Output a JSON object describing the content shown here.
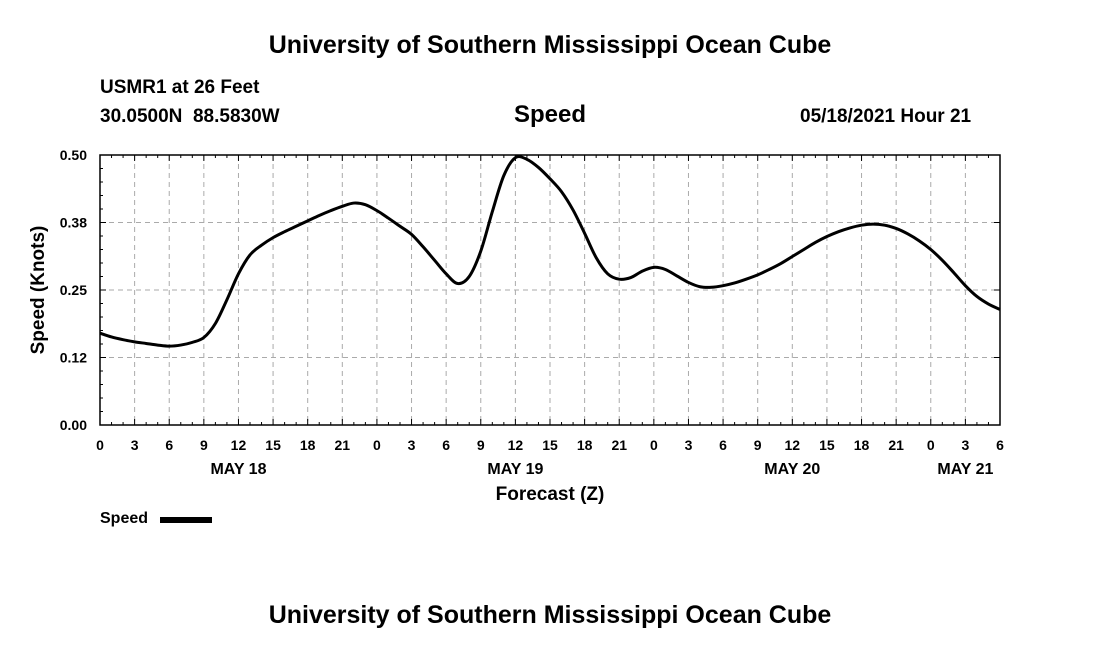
{
  "header": {
    "title_top": "University of Southern Mississippi Ocean Cube",
    "station": "USMR1 at 26 Feet",
    "coords": "30.0500N  88.5830W",
    "chart_name": "Speed",
    "datetime": "05/18/2021 Hour 21",
    "title_bottom": "University of Southern Mississippi Ocean Cube"
  },
  "legend": {
    "label": "Speed"
  },
  "colors": {
    "line": "#000000",
    "grid": "#aaaaaa"
  },
  "chart_data": {
    "type": "line",
    "title": "Speed",
    "xlabel": "Forecast (Z)",
    "ylabel": "Speed (Knots)",
    "xlim": [
      0,
      78
    ],
    "ylim": [
      0,
      0.5
    ],
    "y_ticks": [
      0.0,
      0.125,
      0.25,
      0.375,
      0.5
    ],
    "y_tick_labels": [
      "0.00",
      "0.12",
      "0.25",
      "0.38",
      "0.50"
    ],
    "x_ticks": [
      0,
      3,
      6,
      9,
      12,
      15,
      18,
      21,
      24,
      27,
      30,
      33,
      36,
      39,
      42,
      45,
      48,
      51,
      54,
      57,
      60,
      63,
      66,
      69,
      72,
      75,
      78
    ],
    "x_tick_labels": [
      "0",
      "3",
      "6",
      "9",
      "12",
      "15",
      "18",
      "21",
      "0",
      "3",
      "6",
      "9",
      "12",
      "15",
      "18",
      "21",
      "0",
      "3",
      "6",
      "9",
      "12",
      "15",
      "18",
      "21",
      "0",
      "3",
      "6"
    ],
    "date_labels": [
      {
        "x": 12,
        "label": "MAY 18"
      },
      {
        "x": 36,
        "label": "MAY 19"
      },
      {
        "x": 60,
        "label": "MAY 20"
      },
      {
        "x": 75,
        "label": "MAY 21"
      }
    ],
    "grid": true,
    "series": [
      {
        "name": "Speed",
        "x": [
          0,
          1,
          2,
          3,
          4,
          5,
          6,
          7,
          8,
          9,
          10,
          11,
          12,
          13,
          14,
          15,
          16,
          17,
          18,
          19,
          20,
          21,
          22,
          23,
          24,
          25,
          26,
          27,
          28,
          29,
          30,
          31,
          32,
          33,
          34,
          35,
          36,
          37,
          38,
          39,
          40,
          41,
          42,
          43,
          44,
          45,
          46,
          47,
          48,
          49,
          50,
          51,
          52,
          53,
          54,
          55,
          56,
          57,
          58,
          59,
          60,
          61,
          62,
          63,
          64,
          65,
          66,
          67,
          68,
          69,
          70,
          71,
          72,
          73,
          74,
          75,
          76,
          77,
          78
        ],
        "values": [
          0.17,
          0.163,
          0.158,
          0.154,
          0.151,
          0.148,
          0.146,
          0.148,
          0.153,
          0.162,
          0.188,
          0.232,
          0.28,
          0.315,
          0.333,
          0.347,
          0.358,
          0.368,
          0.378,
          0.388,
          0.397,
          0.405,
          0.411,
          0.408,
          0.397,
          0.383,
          0.368,
          0.353,
          0.33,
          0.305,
          0.28,
          0.262,
          0.275,
          0.322,
          0.395,
          0.462,
          0.495,
          0.492,
          0.477,
          0.456,
          0.432,
          0.398,
          0.355,
          0.31,
          0.28,
          0.27,
          0.273,
          0.285,
          0.292,
          0.288,
          0.276,
          0.264,
          0.256,
          0.255,
          0.258,
          0.263,
          0.27,
          0.278,
          0.288,
          0.299,
          0.312,
          0.325,
          0.338,
          0.349,
          0.358,
          0.365,
          0.37,
          0.372,
          0.37,
          0.364,
          0.354,
          0.341,
          0.325,
          0.305,
          0.282,
          0.258,
          0.238,
          0.224,
          0.214
        ]
      }
    ]
  }
}
